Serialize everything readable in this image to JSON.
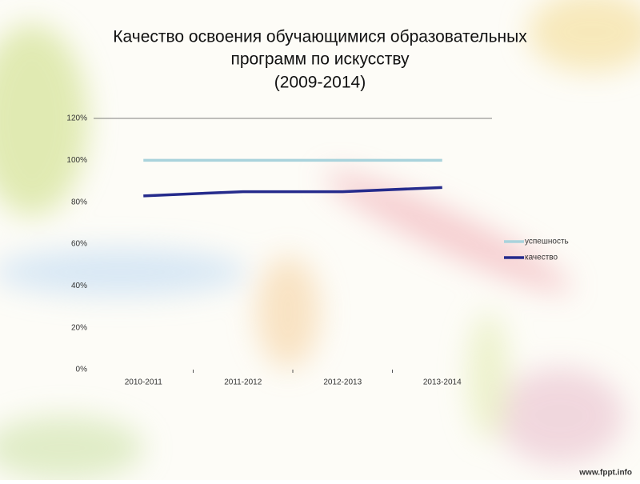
{
  "chart_data": {
    "type": "line",
    "title": [
      "Качество освоения обучающимися образовательных",
      "программ по искусству",
      "(2009-2014)"
    ],
    "categories": [
      "2010-2011",
      "2011-2012",
      "2012-2013",
      "2013-2014"
    ],
    "series": [
      {
        "name": "успешность",
        "color": "#a9d3dc",
        "values": [
          100,
          100,
          100,
          100
        ]
      },
      {
        "name": "качество",
        "color": "#252b8c",
        "values": [
          83,
          85,
          85,
          87
        ]
      }
    ],
    "ylim": [
      0,
      120
    ],
    "yticks": [
      {
        "value": 0,
        "label": "0%"
      },
      {
        "value": 20,
        "label": "20%"
      },
      {
        "value": 40,
        "label": "40%"
      },
      {
        "value": 60,
        "label": "60%"
      },
      {
        "value": 80,
        "label": "80%"
      },
      {
        "value": 100,
        "label": "100%"
      },
      {
        "value": 120,
        "label": "120%"
      }
    ],
    "legend": "right"
  },
  "footer": "www.fppt.info"
}
